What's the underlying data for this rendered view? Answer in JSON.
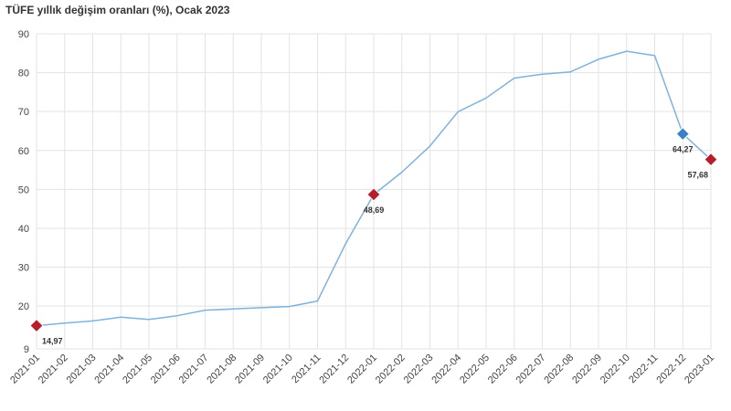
{
  "chart_data": {
    "type": "line",
    "title": "TÜFE yıllık değişim oranları (%), Ocak 2023",
    "xlabel": "",
    "ylabel": "",
    "categories": [
      "2021-01",
      "2021-02",
      "2021-03",
      "2021-04",
      "2021-05",
      "2021-06",
      "2021-07",
      "2021-08",
      "2021-09",
      "2021-10",
      "2021-11",
      "2021-12",
      "2022-01",
      "2022-02",
      "2022-03",
      "2022-04",
      "2022-05",
      "2022-06",
      "2022-07",
      "2022-08",
      "2022-09",
      "2022-10",
      "2022-11",
      "2022-12",
      "2023-01"
    ],
    "series": [
      {
        "values": [
          14.97,
          15.61,
          16.19,
          17.14,
          16.59,
          17.53,
          18.95,
          19.25,
          19.58,
          19.89,
          21.31,
          36.08,
          48.69,
          54.44,
          61.14,
          69.97,
          73.5,
          78.62,
          79.6,
          80.21,
          83.45,
          85.51,
          84.39,
          64.27,
          57.68
        ]
      }
    ],
    "yticks": [
      "9",
      "20",
      "30",
      "40",
      "50",
      "60",
      "70",
      "80",
      "90"
    ],
    "ylim": [
      9,
      90
    ],
    "grid": true,
    "line_color": "#7fb2dc",
    "highlights": [
      {
        "index": 0,
        "label": "14,97",
        "color": "#b81d2a"
      },
      {
        "index": 12,
        "label": "48,69",
        "color": "#b81d2a"
      },
      {
        "index": 23,
        "label": "64,27",
        "color": "#3b82c4"
      },
      {
        "index": 24,
        "label": "57,68",
        "color": "#b81d2a"
      }
    ]
  }
}
